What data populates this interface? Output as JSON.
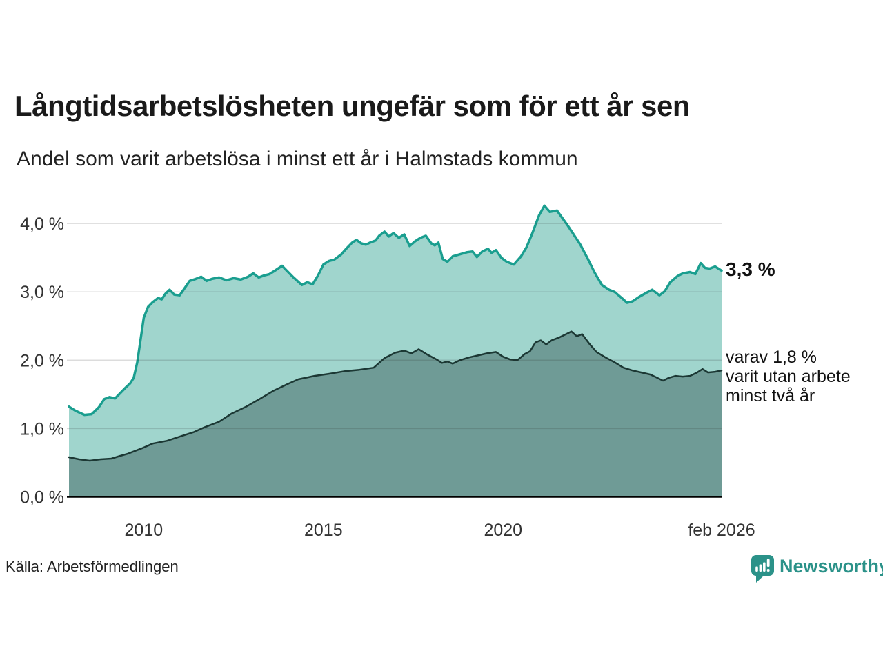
{
  "header": {
    "title": "Långtidsarbetslösheten ungefär som för ett år sen",
    "subtitle": "Andel som varit arbetslösa i minst ett år i Halmstads kommun"
  },
  "annotations": {
    "latest_value": "3,3 %",
    "secondary_line1": "varav 1,8 %",
    "secondary_line2": "varit utan arbete",
    "secondary_line3": "minst två år"
  },
  "footer": {
    "source": "Källa: Arbetsförmedlingen",
    "brand": "Newsworthy",
    "brand_icon": "newsworthy-bubble-barchart-icon"
  },
  "colors": {
    "accent_teal": "#1a9e8f",
    "light_fill": "#a0d5cd",
    "dark_fill": "#6f9b96",
    "dark_stroke": "#1c3834",
    "grid": "#d8d8d8",
    "axis": "#000000",
    "tick_text": "#333333",
    "brand_teal": "#2b9289"
  },
  "chart_data": {
    "type": "area",
    "title": "Långtidsarbetslösheten ungefär som för ett år sen",
    "subtitle": "Andel som varit arbetslösa i minst ett år i Halmstads kommun",
    "unit": "%",
    "grid": true,
    "legend_position": "right-annotations",
    "xlim": [
      2007.92,
      2026.08
    ],
    "ylim": [
      0,
      4.3
    ],
    "yticks": [
      {
        "value": 4.0,
        "label": "4,0 %"
      },
      {
        "value": 3.0,
        "label": "3,0 %"
      },
      {
        "value": 2.0,
        "label": "2,0 %"
      },
      {
        "value": 1.0,
        "label": "1,0 %"
      },
      {
        "value": 0.0,
        "label": "0,0 %"
      }
    ],
    "xticks": [
      {
        "value": 2010,
        "label": "2010"
      },
      {
        "value": 2015,
        "label": "2015"
      },
      {
        "value": 2020,
        "label": "2020"
      },
      {
        "value": 2026.08,
        "label": "feb 2026"
      }
    ],
    "series": [
      {
        "name": "Andel arbetslösa minst ett år",
        "end_label": "3,3 %",
        "latest_value_pct": 3.3,
        "stroke": "#1a9e8f",
        "stroke_width": 3.5,
        "fill": "#a0d5cd",
        "points": [
          [
            2007.92,
            1.32
          ],
          [
            2008.1,
            1.26
          ],
          [
            2008.35,
            1.2
          ],
          [
            2008.55,
            1.21
          ],
          [
            2008.75,
            1.31
          ],
          [
            2008.9,
            1.43
          ],
          [
            2009.05,
            1.46
          ],
          [
            2009.2,
            1.44
          ],
          [
            2009.35,
            1.52
          ],
          [
            2009.5,
            1.6
          ],
          [
            2009.62,
            1.66
          ],
          [
            2009.72,
            1.74
          ],
          [
            2009.82,
            1.97
          ],
          [
            2009.92,
            2.33
          ],
          [
            2010.0,
            2.62
          ],
          [
            2010.12,
            2.78
          ],
          [
            2010.25,
            2.85
          ],
          [
            2010.4,
            2.91
          ],
          [
            2010.5,
            2.89
          ],
          [
            2010.6,
            2.97
          ],
          [
            2010.72,
            3.03
          ],
          [
            2010.85,
            2.96
          ],
          [
            2011.0,
            2.95
          ],
          [
            2011.12,
            3.04
          ],
          [
            2011.28,
            3.16
          ],
          [
            2011.45,
            3.19
          ],
          [
            2011.6,
            3.22
          ],
          [
            2011.75,
            3.16
          ],
          [
            2011.9,
            3.19
          ],
          [
            2012.1,
            3.21
          ],
          [
            2012.3,
            3.17
          ],
          [
            2012.5,
            3.2
          ],
          [
            2012.7,
            3.18
          ],
          [
            2012.9,
            3.22
          ],
          [
            2013.05,
            3.27
          ],
          [
            2013.2,
            3.21
          ],
          [
            2013.35,
            3.24
          ],
          [
            2013.5,
            3.26
          ],
          [
            2013.65,
            3.31
          ],
          [
            2013.85,
            3.38
          ],
          [
            2014.0,
            3.3
          ],
          [
            2014.15,
            3.22
          ],
          [
            2014.4,
            3.1
          ],
          [
            2014.55,
            3.14
          ],
          [
            2014.7,
            3.11
          ],
          [
            2014.85,
            3.24
          ],
          [
            2015.0,
            3.4
          ],
          [
            2015.15,
            3.45
          ],
          [
            2015.3,
            3.47
          ],
          [
            2015.5,
            3.55
          ],
          [
            2015.65,
            3.64
          ],
          [
            2015.8,
            3.72
          ],
          [
            2015.92,
            3.76
          ],
          [
            2016.05,
            3.71
          ],
          [
            2016.18,
            3.69
          ],
          [
            2016.3,
            3.72
          ],
          [
            2016.45,
            3.75
          ],
          [
            2016.55,
            3.82
          ],
          [
            2016.7,
            3.88
          ],
          [
            2016.82,
            3.81
          ],
          [
            2016.95,
            3.86
          ],
          [
            2017.1,
            3.79
          ],
          [
            2017.25,
            3.84
          ],
          [
            2017.4,
            3.67
          ],
          [
            2017.55,
            3.74
          ],
          [
            2017.7,
            3.79
          ],
          [
            2017.85,
            3.82
          ],
          [
            2018.0,
            3.71
          ],
          [
            2018.1,
            3.68
          ],
          [
            2018.2,
            3.72
          ],
          [
            2018.32,
            3.48
          ],
          [
            2018.45,
            3.44
          ],
          [
            2018.6,
            3.52
          ],
          [
            2018.8,
            3.55
          ],
          [
            2019.0,
            3.58
          ],
          [
            2019.15,
            3.59
          ],
          [
            2019.27,
            3.51
          ],
          [
            2019.42,
            3.59
          ],
          [
            2019.58,
            3.63
          ],
          [
            2019.68,
            3.57
          ],
          [
            2019.8,
            3.61
          ],
          [
            2019.95,
            3.5
          ],
          [
            2020.1,
            3.44
          ],
          [
            2020.3,
            3.4
          ],
          [
            2020.5,
            3.52
          ],
          [
            2020.65,
            3.65
          ],
          [
            2020.8,
            3.84
          ],
          [
            2021.0,
            4.12
          ],
          [
            2021.15,
            4.26
          ],
          [
            2021.3,
            4.17
          ],
          [
            2021.5,
            4.19
          ],
          [
            2021.65,
            4.08
          ],
          [
            2021.8,
            3.97
          ],
          [
            2021.95,
            3.85
          ],
          [
            2022.15,
            3.69
          ],
          [
            2022.35,
            3.49
          ],
          [
            2022.55,
            3.28
          ],
          [
            2022.75,
            3.1
          ],
          [
            2022.95,
            3.03
          ],
          [
            2023.1,
            3.0
          ],
          [
            2023.3,
            2.91
          ],
          [
            2023.45,
            2.84
          ],
          [
            2023.6,
            2.86
          ],
          [
            2023.8,
            2.93
          ],
          [
            2024.0,
            2.99
          ],
          [
            2024.15,
            3.03
          ],
          [
            2024.35,
            2.95
          ],
          [
            2024.5,
            3.01
          ],
          [
            2024.65,
            3.14
          ],
          [
            2024.85,
            3.23
          ],
          [
            2025.0,
            3.27
          ],
          [
            2025.2,
            3.29
          ],
          [
            2025.35,
            3.26
          ],
          [
            2025.5,
            3.42
          ],
          [
            2025.62,
            3.35
          ],
          [
            2025.75,
            3.34
          ],
          [
            2025.9,
            3.37
          ],
          [
            2026.08,
            3.31
          ]
        ]
      },
      {
        "name": "Varav utan arbete minst två år",
        "end_label": "varav 1,8 % varit utan arbete minst två år",
        "latest_value_pct": 1.8,
        "stroke": "#1c3834",
        "stroke_width": 2.5,
        "fill": "#6f9b96",
        "points": [
          [
            2007.92,
            0.58
          ],
          [
            2008.2,
            0.55
          ],
          [
            2008.5,
            0.53
          ],
          [
            2008.8,
            0.55
          ],
          [
            2009.1,
            0.56
          ],
          [
            2009.35,
            0.6
          ],
          [
            2009.55,
            0.63
          ],
          [
            2009.75,
            0.67
          ],
          [
            2009.95,
            0.71
          ],
          [
            2010.25,
            0.78
          ],
          [
            2010.65,
            0.82
          ],
          [
            2011.05,
            0.89
          ],
          [
            2011.4,
            0.95
          ],
          [
            2011.7,
            1.02
          ],
          [
            2012.1,
            1.1
          ],
          [
            2012.45,
            1.22
          ],
          [
            2012.85,
            1.32
          ],
          [
            2013.25,
            1.44
          ],
          [
            2013.6,
            1.55
          ],
          [
            2014.0,
            1.65
          ],
          [
            2014.3,
            1.72
          ],
          [
            2014.75,
            1.77
          ],
          [
            2015.15,
            1.8
          ],
          [
            2015.6,
            1.84
          ],
          [
            2016.0,
            1.86
          ],
          [
            2016.4,
            1.89
          ],
          [
            2016.7,
            2.03
          ],
          [
            2017.0,
            2.11
          ],
          [
            2017.25,
            2.14
          ],
          [
            2017.45,
            2.1
          ],
          [
            2017.65,
            2.16
          ],
          [
            2017.9,
            2.08
          ],
          [
            2018.15,
            2.01
          ],
          [
            2018.3,
            1.96
          ],
          [
            2018.45,
            1.98
          ],
          [
            2018.6,
            1.95
          ],
          [
            2018.8,
            2.0
          ],
          [
            2019.05,
            2.04
          ],
          [
            2019.3,
            2.07
          ],
          [
            2019.55,
            2.1
          ],
          [
            2019.8,
            2.12
          ],
          [
            2020.0,
            2.05
          ],
          [
            2020.2,
            2.01
          ],
          [
            2020.4,
            2.0
          ],
          [
            2020.6,
            2.09
          ],
          [
            2020.75,
            2.13
          ],
          [
            2020.9,
            2.26
          ],
          [
            2021.05,
            2.29
          ],
          [
            2021.2,
            2.23
          ],
          [
            2021.35,
            2.29
          ],
          [
            2021.55,
            2.33
          ],
          [
            2021.75,
            2.38
          ],
          [
            2021.9,
            2.42
          ],
          [
            2022.05,
            2.35
          ],
          [
            2022.2,
            2.38
          ],
          [
            2022.4,
            2.24
          ],
          [
            2022.6,
            2.12
          ],
          [
            2022.85,
            2.04
          ],
          [
            2023.1,
            1.97
          ],
          [
            2023.35,
            1.89
          ],
          [
            2023.6,
            1.85
          ],
          [
            2023.85,
            1.82
          ],
          [
            2024.1,
            1.79
          ],
          [
            2024.3,
            1.74
          ],
          [
            2024.45,
            1.7
          ],
          [
            2024.6,
            1.74
          ],
          [
            2024.8,
            1.77
          ],
          [
            2025.0,
            1.76
          ],
          [
            2025.2,
            1.77
          ],
          [
            2025.4,
            1.82
          ],
          [
            2025.55,
            1.87
          ],
          [
            2025.7,
            1.82
          ],
          [
            2025.9,
            1.83
          ],
          [
            2026.08,
            1.85
          ]
        ]
      }
    ]
  }
}
